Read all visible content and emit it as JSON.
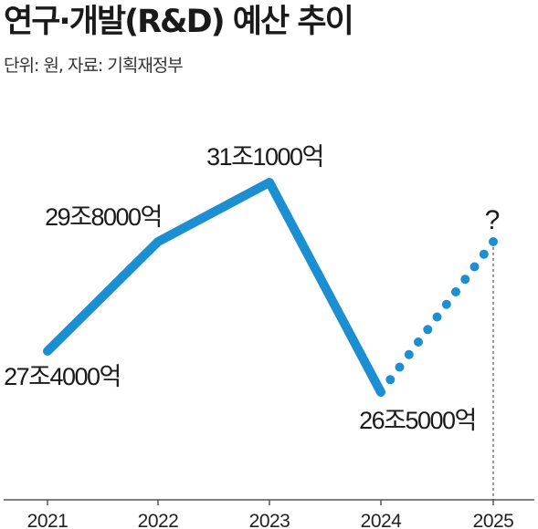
{
  "title": "연구·개발(R&D) 예산 추이",
  "subtitle": "단위: 원, 자료: 기획재정부",
  "colors": {
    "line": "#1b8fd1",
    "axis": "#555555"
  },
  "chart_data": {
    "type": "line",
    "categories": [
      "2021",
      "2022",
      "2023",
      "2024",
      "2025"
    ],
    "series": [
      {
        "values": [
          27.4,
          29.8,
          31.1,
          26.5,
          null
        ],
        "style": "solid"
      },
      {
        "values": [
          null,
          null,
          null,
          26.5,
          29.8
        ],
        "style": "dotted"
      }
    ],
    "data_labels": [
      "27조4000억",
      "29조8000억",
      "31조1000억",
      "26조5000억",
      "?"
    ],
    "ylim": [
      25.0,
      32.5
    ],
    "y_axis_visible": false,
    "grid": false
  }
}
